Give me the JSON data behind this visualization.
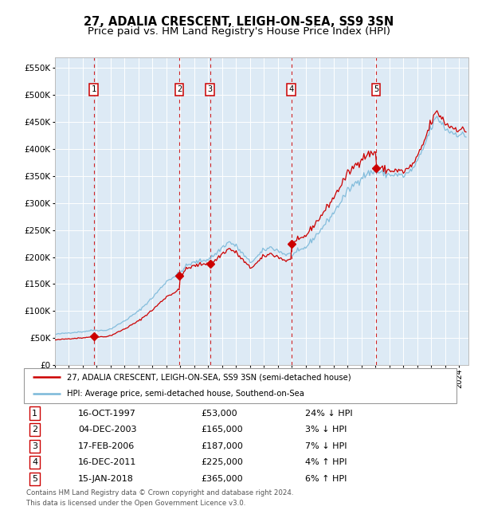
{
  "title1": "27, ADALIA CRESCENT, LEIGH-ON-SEA, SS9 3SN",
  "title2": "Price paid vs. HM Land Registry's House Price Index (HPI)",
  "legend_line1": "27, ADALIA CRESCENT, LEIGH-ON-SEA, SS9 3SN (semi-detached house)",
  "legend_line2": "HPI: Average price, semi-detached house, Southend-on-Sea",
  "footer1": "Contains HM Land Registry data © Crown copyright and database right 2024.",
  "footer2": "This data is licensed under the Open Government Licence v3.0.",
  "transactions": [
    {
      "num": 1,
      "date_str": "16-OCT-1997",
      "date_f": 1997.792,
      "price": 53000,
      "rel": "24% ↓ HPI"
    },
    {
      "num": 2,
      "date_str": "04-DEC-2003",
      "date_f": 2003.917,
      "price": 165000,
      "rel": "3% ↓ HPI"
    },
    {
      "num": 3,
      "date_str": "17-FEB-2006",
      "date_f": 2006.125,
      "price": 187000,
      "rel": "7% ↓ HPI"
    },
    {
      "num": 4,
      "date_str": "16-DEC-2011",
      "date_f": 2011.958,
      "price": 225000,
      "rel": "4% ↑ HPI"
    },
    {
      "num": 5,
      "date_str": "15-JAN-2018",
      "date_f": 2018.042,
      "price": 365000,
      "rel": "6% ↑ HPI"
    }
  ],
  "price_str": [
    "£53,000",
    "£165,000",
    "£187,000",
    "£225,000",
    "£365,000"
  ],
  "hpi_color": "#7ab8d9",
  "price_color": "#cc0000",
  "bg_color": "#ddeaf5",
  "grid_color": "#ffffff",
  "vline_color": "#cc0000",
  "xlim_start": 1995.0,
  "xlim_end": 2024.67,
  "ylim_min": 0,
  "ylim_max": 570000,
  "yticks": [
    0,
    50000,
    100000,
    150000,
    200000,
    250000,
    300000,
    350000,
    400000,
    450000,
    500000,
    550000
  ],
  "title_fontsize": 10.5,
  "subtitle_fontsize": 9.5
}
